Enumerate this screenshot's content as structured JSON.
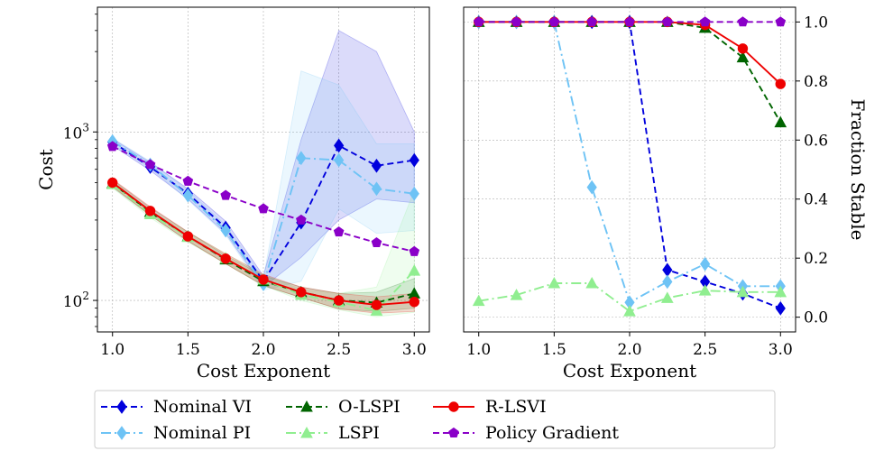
{
  "series_styles": [
    {
      "name": "Nominal VI",
      "color": "#0000dd",
      "marker": "diamond",
      "dash": "7,4"
    },
    {
      "name": "Nominal PI",
      "color": "#6ec3f5",
      "marker": "diamond",
      "dash": "11,4,2,4"
    },
    {
      "name": "O-LSPI",
      "color": "#006400",
      "marker": "triangle",
      "dash": "7,4"
    },
    {
      "name": "LSPI",
      "color": "#90ee90",
      "marker": "triangle",
      "dash": "11,4,2,4"
    },
    {
      "name": "R-LSVI",
      "color": "#ee0000",
      "marker": "circle",
      "dash": ""
    },
    {
      "name": "Policy Gradient",
      "color": "#8a00c8",
      "marker": "pentagon",
      "dash": "7,4"
    }
  ],
  "legend": {
    "entries": [
      "Nominal VI",
      "Nominal PI",
      "O-LSPI",
      "LSPI",
      "R-LSVI",
      "Policy Gradient"
    ],
    "placement": "bottom"
  },
  "chart_data": [
    {
      "type": "line",
      "xlabel": "Cost Exponent",
      "ylabel": "Cost",
      "yscale": "log",
      "xlim": [
        0.9,
        3.1
      ],
      "ylim": [
        65,
        5500
      ],
      "grid": true,
      "x": [
        1.0,
        1.25,
        1.5,
        1.75,
        2.0,
        2.25,
        2.5,
        2.75,
        3.0
      ],
      "xtick_labels": [
        "1.0",
        "1.5",
        "2.0",
        "2.5",
        "3.0"
      ],
      "xtick_values": [
        1.0,
        1.5,
        2.0,
        2.5,
        3.0
      ],
      "ytick_values": [
        100,
        1000
      ],
      "ytick_labels": [
        {
          "base": "10",
          "exp": "2"
        },
        {
          "base": "10",
          "exp": "3"
        }
      ],
      "series": [
        {
          "name": "Nominal VI",
          "values": [
            870,
            620,
            430,
            270,
            130,
            290,
            830,
            630,
            680
          ],
          "band_low": [
            830,
            590,
            400,
            250,
            120,
            180,
            300,
            400,
            380
          ],
          "band_high": [
            910,
            660,
            460,
            295,
            140,
            900,
            4000,
            3000,
            1000
          ]
        },
        {
          "name": "Nominal PI",
          "values": [
            880,
            640,
            420,
            260,
            125,
            700,
            680,
            460,
            430
          ],
          "band_low": [
            840,
            610,
            395,
            245,
            115,
            130,
            350,
            250,
            260
          ],
          "band_high": [
            920,
            670,
            450,
            280,
            135,
            2300,
            1900,
            850,
            850
          ]
        },
        {
          "name": "O-LSPI",
          "values": [
            495,
            335,
            240,
            175,
            130,
            112,
            100,
            97,
            110
          ],
          "band_low": [
            470,
            320,
            225,
            165,
            122,
            104,
            89,
            86,
            90
          ],
          "band_high": [
            520,
            355,
            255,
            185,
            140,
            120,
            110,
            112,
            135
          ]
        },
        {
          "name": "LSPI",
          "values": [
            490,
            325,
            238,
            178,
            133,
            108,
            98,
            87,
            150
          ],
          "band_low": [
            465,
            310,
            222,
            165,
            123,
            100,
            88,
            80,
            85
          ],
          "band_high": [
            515,
            340,
            254,
            190,
            143,
            116,
            110,
            120,
            450
          ]
        },
        {
          "name": "R-LSVI",
          "values": [
            500,
            340,
            240,
            177,
            133,
            112,
            100,
            94,
            98
          ],
          "band_low": [
            475,
            320,
            225,
            165,
            123,
            104,
            89,
            84,
            86
          ],
          "band_high": [
            525,
            360,
            255,
            189,
            143,
            120,
            110,
            105,
            110
          ]
        },
        {
          "name": "Policy Gradient",
          "values": [
            820,
            640,
            510,
            420,
            350,
            300,
            255,
            220,
            195
          ]
        }
      ]
    },
    {
      "type": "line",
      "xlabel": "Cost Exponent",
      "ylabel": "Fraction Stable",
      "yaxis_position": "right",
      "xlim": [
        0.9,
        3.1
      ],
      "ylim": [
        -0.05,
        1.05
      ],
      "grid": true,
      "x": [
        1.0,
        1.25,
        1.5,
        1.75,
        2.0,
        2.25,
        2.5,
        2.75,
        3.0
      ],
      "xtick_labels": [
        "1.0",
        "1.5",
        "2.0",
        "2.5",
        "3.0"
      ],
      "xtick_values": [
        1.0,
        1.5,
        2.0,
        2.5,
        3.0
      ],
      "ytick_values": [
        0.0,
        0.2,
        0.4,
        0.6,
        0.8,
        1.0
      ],
      "ytick_labels": [
        "0.0",
        "0.2",
        "0.4",
        "0.6",
        "0.8",
        "1.0"
      ],
      "series": [
        {
          "name": "Nominal VI",
          "values": [
            1.0,
            1.0,
            1.0,
            1.0,
            1.0,
            0.16,
            0.12,
            0.08,
            0.03
          ]
        },
        {
          "name": "Nominal PI",
          "values": [
            1.0,
            1.0,
            1.0,
            0.44,
            0.05,
            0.12,
            0.18,
            0.105,
            0.105
          ]
        },
        {
          "name": "O-LSPI",
          "values": [
            1.0,
            1.0,
            1.0,
            1.0,
            1.0,
            1.0,
            0.98,
            0.88,
            0.66
          ]
        },
        {
          "name": "LSPI",
          "values": [
            0.055,
            0.075,
            0.115,
            0.115,
            0.02,
            0.065,
            0.09,
            0.085,
            0.085
          ]
        },
        {
          "name": "R-LSVI",
          "values": [
            1.0,
            1.0,
            1.0,
            1.0,
            1.0,
            1.0,
            0.99,
            0.91,
            0.79
          ]
        },
        {
          "name": "Policy Gradient",
          "values": [
            1.0,
            1.0,
            1.0,
            1.0,
            1.0,
            1.0,
            1.0,
            1.0,
            1.0
          ]
        }
      ]
    }
  ]
}
